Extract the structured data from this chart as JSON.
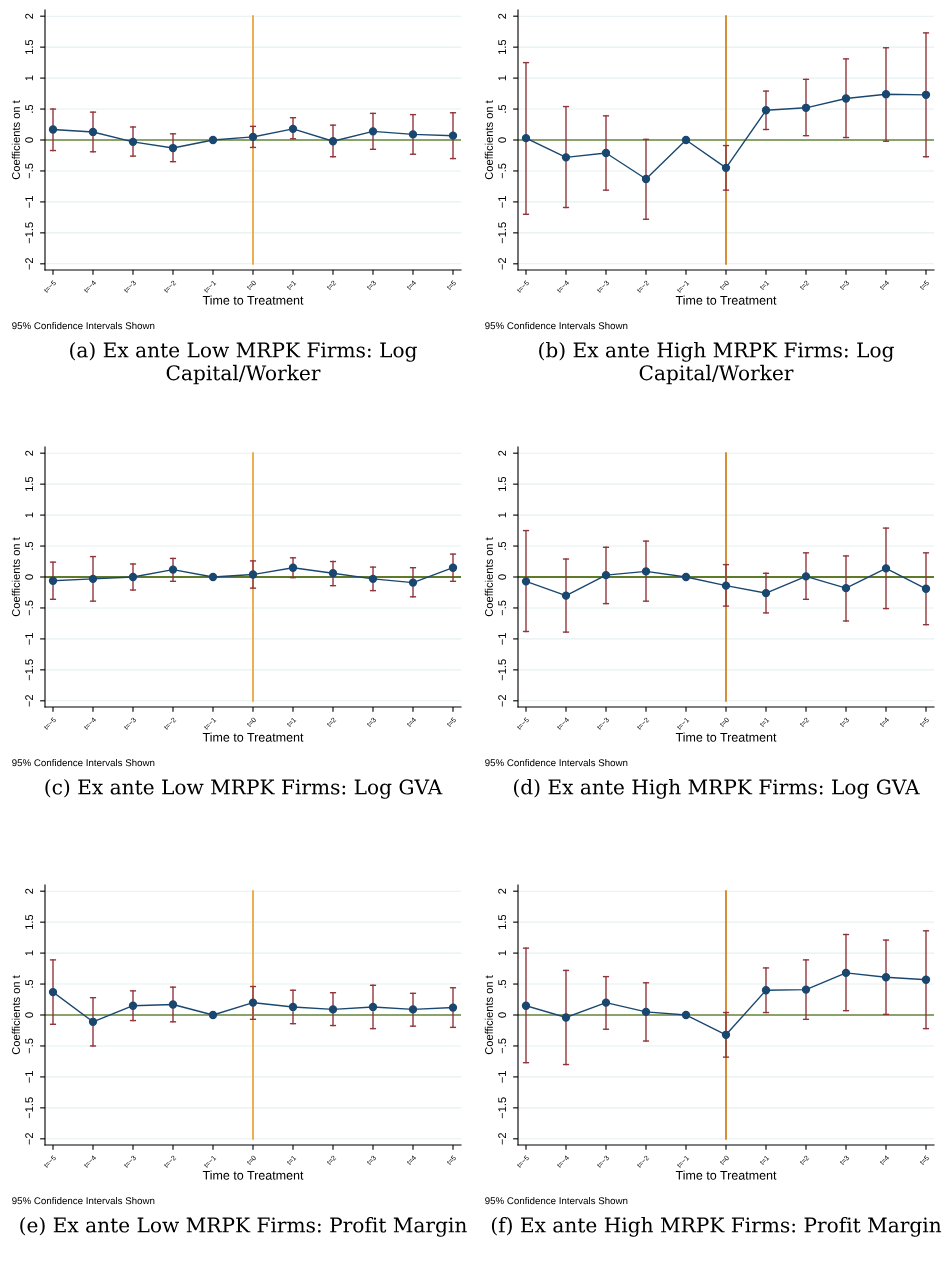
{
  "chart_data": [
    {
      "type": "line",
      "title": "(a) Ex ante Low MRPK Firms: Log Capital/Worker",
      "xlabel": "Time to Treatment",
      "ylabel": "Coefficients on t",
      "annotations": [
        "95% Confidence Intervals Shown"
      ],
      "categories": [
        "t=−5",
        "t=−4",
        "t=−3",
        "t=−2",
        "t=−1",
        "t=0",
        "t=1",
        "t=2",
        "t=3",
        "t=4",
        "t=5"
      ],
      "series": [
        {
          "color": "#1a476f",
          "values": [
            0.17,
            0.13,
            -0.03,
            -0.13,
            0,
            0.05,
            0.18,
            -0.02,
            0.14,
            0.09,
            0.07
          ],
          "errors": [
            [
              -0.17,
              0.5
            ],
            [
              -0.19,
              0.45
            ],
            [
              -0.26,
              0.21
            ],
            [
              -0.35,
              0.1
            ],
            null,
            [
              -0.12,
              0.22
            ],
            [
              0.02,
              0.36
            ],
            [
              -0.27,
              0.24
            ],
            [
              -0.15,
              0.43
            ],
            [
              -0.23,
              0.41
            ],
            [
              -0.3,
              0.44
            ]
          ]
        }
      ],
      "ylim": [
        -2.1,
        2.1
      ],
      "yticks": [
        {
          "value": -2,
          "label": "−2"
        },
        {
          "value": -1.5,
          "label": "−1.5"
        },
        {
          "value": -1,
          "label": "−1"
        },
        {
          "value": -0.5,
          "label": "−.5"
        },
        0,
        {
          "value": 0.5,
          "label": ".5"
        },
        1,
        1.5,
        2
      ],
      "ref_lines": [
        {
          "axis": "y",
          "value": 0,
          "color": "#8aa36b"
        },
        {
          "axis": "x",
          "value": "t=0",
          "color": "#e8a030"
        }
      ],
      "grid": "y",
      "marker": "circle",
      "line_style": "solid"
    },
    {
      "type": "line",
      "title": "(b) Ex ante High MRPK Firms: Log Capital/Worker",
      "xlabel": "Time to Treatment",
      "ylabel": "Coefficients on t",
      "annotations": [
        "95% Confidence Intervals Shown"
      ],
      "categories": [
        "t=−5",
        "t=−4",
        "t=−3",
        "t=−2",
        "t=−1",
        "t=0",
        "t=1",
        "t=2",
        "t=3",
        "t=4",
        "t=5"
      ],
      "series": [
        {
          "color": "#1a476f",
          "values": [
            0.03,
            -0.28,
            -0.21,
            -0.63,
            0,
            -0.45,
            0.48,
            0.52,
            0.67,
            0.74,
            0.73
          ],
          "errors": [
            [
              -1.2,
              1.25
            ],
            [
              -1.09,
              0.54
            ],
            [
              -0.81,
              0.39
            ],
            [
              -1.28,
              0.01
            ],
            null,
            [
              -0.81,
              -0.09
            ],
            [
              0.17,
              0.79
            ],
            [
              0.07,
              0.98
            ],
            [
              0.04,
              1.31
            ],
            [
              -0.02,
              1.49
            ],
            [
              -0.27,
              1.73
            ]
          ]
        }
      ],
      "ylim": [
        -2.1,
        2.1
      ],
      "yticks": [
        {
          "value": -2,
          "label": "−2"
        },
        {
          "value": -1.5,
          "label": "−1.5"
        },
        {
          "value": -1,
          "label": "−1"
        },
        {
          "value": -0.5,
          "label": "−.5"
        },
        0,
        {
          "value": 0.5,
          "label": ".5"
        },
        1,
        1.5,
        2
      ],
      "ref_lines": [
        {
          "axis": "y",
          "value": 0,
          "color": "#8aa36b"
        },
        {
          "axis": "x",
          "value": "t=0",
          "color": "#d07a10"
        }
      ],
      "grid": "y",
      "marker": "circle",
      "line_style": "solid"
    },
    {
      "type": "line",
      "title": "(c) Ex ante Low MRPK Firms: Log GVA",
      "xlabel": "Time to Treatment",
      "ylabel": "Coefficients on t",
      "annotations": [
        "95% Confidence Intervals Shown"
      ],
      "categories": [
        "t=−5",
        "t=−4",
        "t=−3",
        "t=−2",
        "t=−1",
        "t=0",
        "t=1",
        "t=2",
        "t=3",
        "t=4",
        "t=5"
      ],
      "series": [
        {
          "color": "#1a476f",
          "values": [
            -0.06,
            -0.03,
            0,
            0.12,
            0,
            0.04,
            0.15,
            0.06,
            -0.03,
            -0.09,
            0.15
          ],
          "errors": [
            [
              -0.36,
              0.24
            ],
            [
              -0.39,
              0.33
            ],
            [
              -0.21,
              0.21
            ],
            [
              -0.07,
              0.3
            ],
            null,
            [
              -0.18,
              0.26
            ],
            [
              -0.01,
              0.31
            ],
            [
              -0.14,
              0.25
            ],
            [
              -0.22,
              0.16
            ],
            [
              -0.32,
              0.15
            ],
            [
              -0.07,
              0.37
            ]
          ]
        }
      ],
      "ylim": [
        -2.1,
        2.1
      ],
      "yticks": [
        {
          "value": -2,
          "label": "−2"
        },
        {
          "value": -1.5,
          "label": "−1.5"
        },
        {
          "value": -1,
          "label": "−1"
        },
        {
          "value": -0.5,
          "label": "−.5"
        },
        0,
        {
          "value": 0.5,
          "label": ".5"
        },
        1,
        1.5,
        2
      ],
      "ref_lines": [
        {
          "axis": "y",
          "value": 0,
          "color": "#5f7a2a"
        },
        {
          "axis": "x",
          "value": "t=0",
          "color": "#e8a030"
        }
      ],
      "grid": "y",
      "marker": "circle",
      "line_style": "solid"
    },
    {
      "type": "line",
      "title": "(d) Ex ante High MRPK Firms: Log GVA",
      "xlabel": "Time to Treatment",
      "ylabel": "Coefficients on t",
      "annotations": [
        "95% Confidence Intervals Shown"
      ],
      "categories": [
        "t=−5",
        "t=−4",
        "t=−3",
        "t=−2",
        "t=−1",
        "t=0",
        "t=1",
        "t=2",
        "t=3",
        "t=4",
        "t=5"
      ],
      "series": [
        {
          "color": "#1a476f",
          "values": [
            -0.07,
            -0.3,
            0.03,
            0.09,
            0,
            -0.14,
            -0.26,
            0.01,
            -0.18,
            0.14,
            -0.19
          ],
          "errors": [
            [
              -0.88,
              0.75
            ],
            [
              -0.89,
              0.29
            ],
            [
              -0.43,
              0.48
            ],
            [
              -0.39,
              0.58
            ],
            null,
            [
              -0.47,
              0.2
            ],
            [
              -0.58,
              0.06
            ],
            [
              -0.36,
              0.39
            ],
            [
              -0.71,
              0.34
            ],
            [
              -0.51,
              0.79
            ],
            [
              -0.77,
              0.39
            ]
          ]
        }
      ],
      "ylim": [
        -2.1,
        2.1
      ],
      "yticks": [
        {
          "value": -2,
          "label": "−2"
        },
        {
          "value": -1.5,
          "label": "−1.5"
        },
        {
          "value": -1,
          "label": "−1"
        },
        {
          "value": -0.5,
          "label": "−.5"
        },
        0,
        {
          "value": 0.5,
          "label": ".5"
        },
        1,
        1.5,
        2
      ],
      "ref_lines": [
        {
          "axis": "y",
          "value": 0,
          "color": "#5f7a2a"
        },
        {
          "axis": "x",
          "value": "t=0",
          "color": "#d07a10"
        }
      ],
      "grid": "y",
      "marker": "circle",
      "line_style": "solid"
    },
    {
      "type": "line",
      "title": "(e) Ex ante Low MRPK Firms: Profit Margin",
      "xlabel": "Time to Treatment",
      "ylabel": "Coefficients on t",
      "annotations": [
        "95% Confidence Intervals Shown"
      ],
      "categories": [
        "t=−5",
        "t=−4",
        "t=−3",
        "t=−2",
        "t=−1",
        "t=0",
        "t=1",
        "t=2",
        "t=3",
        "t=4",
        "t=5"
      ],
      "series": [
        {
          "color": "#1a476f",
          "values": [
            0.37,
            -0.11,
            0.15,
            0.17,
            0,
            0.2,
            0.13,
            0.09,
            0.13,
            0.09,
            0.12
          ],
          "errors": [
            [
              -0.15,
              0.89
            ],
            [
              -0.5,
              0.28
            ],
            [
              -0.09,
              0.39
            ],
            [
              -0.11,
              0.45
            ],
            null,
            [
              -0.07,
              0.46
            ],
            [
              -0.14,
              0.4
            ],
            [
              -0.17,
              0.36
            ],
            [
              -0.22,
              0.48
            ],
            [
              -0.18,
              0.35
            ],
            [
              -0.2,
              0.44
            ]
          ]
        }
      ],
      "ylim": [
        -2.1,
        2.1
      ],
      "yticks": [
        {
          "value": -2,
          "label": "−2"
        },
        {
          "value": -1.5,
          "label": "−1.5"
        },
        {
          "value": -1,
          "label": "−1"
        },
        {
          "value": -0.5,
          "label": "−.5"
        },
        0,
        {
          "value": 0.5,
          "label": ".5"
        },
        1,
        1.5,
        2
      ],
      "ref_lines": [
        {
          "axis": "y",
          "value": 0,
          "color": "#8aa36b"
        },
        {
          "axis": "x",
          "value": "t=0",
          "color": "#e8a030"
        }
      ],
      "grid": "y",
      "marker": "circle",
      "line_style": "solid"
    },
    {
      "type": "line",
      "title": "(f) Ex ante High MRPK Firms: Profit Margin",
      "xlabel": "Time to Treatment",
      "ylabel": "Coefficients on t",
      "annotations": [
        "95% Confidence Intervals Shown"
      ],
      "categories": [
        "t=−5",
        "t=−4",
        "t=−3",
        "t=−2",
        "t=−1",
        "t=0",
        "t=1",
        "t=2",
        "t=3",
        "t=4",
        "t=5"
      ],
      "series": [
        {
          "color": "#1a476f",
          "values": [
            0.15,
            -0.04,
            0.2,
            0.05,
            0,
            -0.32,
            0.4,
            0.41,
            0.68,
            0.61,
            0.57
          ],
          "errors": [
            [
              -0.77,
              1.08
            ],
            [
              -0.8,
              0.72
            ],
            [
              -0.23,
              0.62
            ],
            [
              -0.42,
              0.52
            ],
            null,
            [
              -0.68,
              0.04
            ],
            [
              0.04,
              0.76
            ],
            [
              -0.07,
              0.89
            ],
            [
              0.07,
              1.3
            ],
            [
              0.01,
              1.21
            ],
            [
              -0.22,
              1.36
            ]
          ]
        }
      ],
      "ylim": [
        -2.1,
        2.1
      ],
      "yticks": [
        {
          "value": -2,
          "label": "−2"
        },
        {
          "value": -1.5,
          "label": "−1.5"
        },
        {
          "value": -1,
          "label": "−1"
        },
        {
          "value": -0.5,
          "label": "−.5"
        },
        0,
        {
          "value": 0.5,
          "label": ".5"
        },
        1,
        1.5,
        2
      ],
      "ref_lines": [
        {
          "axis": "y",
          "value": 0,
          "color": "#8aa36b"
        },
        {
          "axis": "x",
          "value": "t=0",
          "color": "#d07a10"
        }
      ],
      "grid": "y",
      "marker": "circle",
      "line_style": "solid"
    }
  ]
}
